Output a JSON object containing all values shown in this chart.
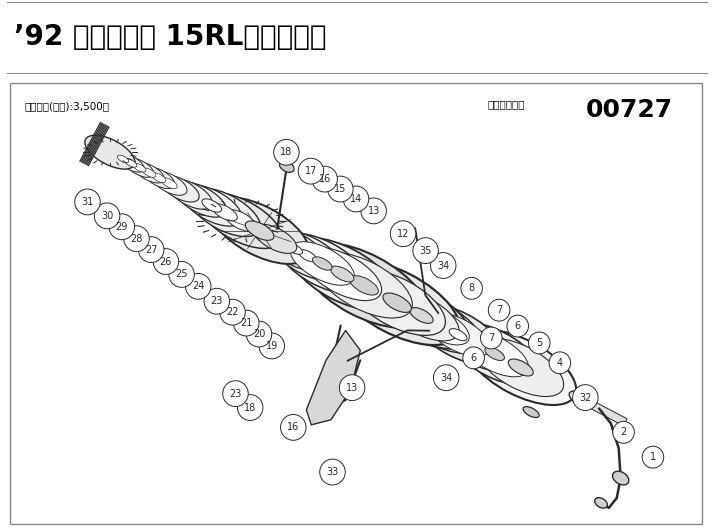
{
  "title": "’92 クラブデミ 15RL（ブルー）",
  "price_text": "本体価格(税別):3,500円",
  "product_code_label": "商品コード：",
  "product_code": "00727",
  "bg_color": "#ffffff",
  "title_color": "#000000",
  "sc": "#2a2a2a"
}
